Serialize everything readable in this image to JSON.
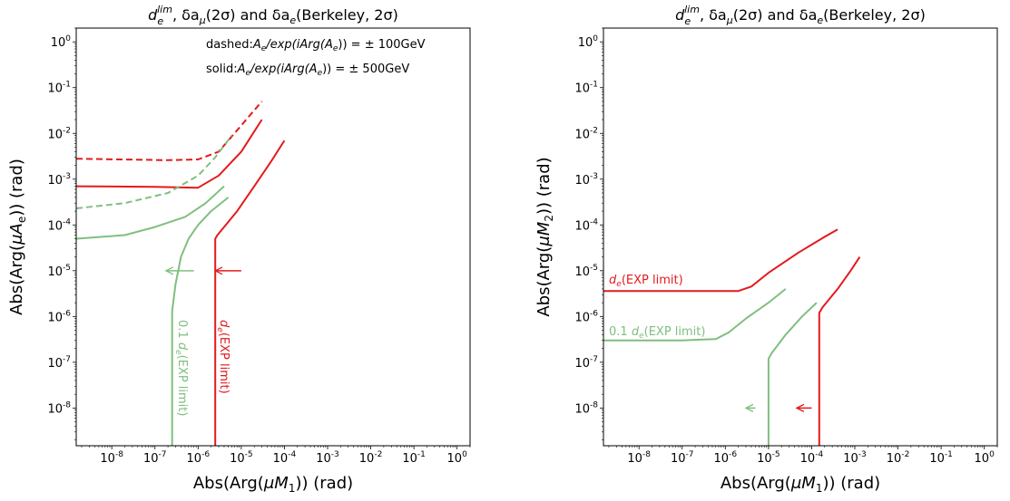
{
  "chart_data": [
    {
      "type": "line",
      "title": "d_e^lim, δa_μ(2σ) and δa_e(Berkeley, 2σ)",
      "title_parts": {
        "d": "d",
        "e": "e",
        "lim": "lim",
        "rest": ", δa",
        "mu": "μ",
        "mid": "(2σ) and δa",
        "e2": "e",
        "end": "(Berkeley, 2σ)"
      },
      "xlabel": "Abs(Arg(μM1)) (rad)",
      "xlabel_parts": {
        "a": "Abs(Arg(",
        "var": "μM",
        "sub": "1",
        "b": ")) (rad)"
      },
      "ylabel": "Abs(Arg(μAe)) (rad)",
      "ylabel_parts": {
        "a": "Abs(Arg(",
        "var": "μA",
        "sub": "e",
        "b": ")) (rad)"
      },
      "xscale": "log",
      "yscale": "log",
      "xlim": [
        1.5e-09,
        2.0
      ],
      "ylim": [
        1.5e-09,
        2.0
      ],
      "xticks": [
        "10^-8",
        "10^-7",
        "10^-6",
        "10^-5",
        "10^-4",
        "10^-3",
        "10^-2",
        "10^-1",
        "10^0"
      ],
      "yticks": [
        "10^-8",
        "10^-7",
        "10^-6",
        "10^-5",
        "10^-4",
        "10^-3",
        "10^-2",
        "10^-1",
        "10^0"
      ],
      "annotations": [
        {
          "prefix": "dashed:",
          "body": "A_e/exp(iArg(A_e)) = ± 100GeV"
        },
        {
          "prefix": "solid:",
          "body": "A_e/exp(iArg(A_e)) = ± 500GeV"
        }
      ],
      "curve_labels": [
        {
          "text": "0.1 d_e(EXP limit)",
          "color": "#7fbf7f"
        },
        {
          "text": "d_e(EXP limit)",
          "color": "#e31a1c"
        }
      ],
      "series": [
        {
          "color": "#e31a1c",
          "dash": true,
          "x": [
            1.5e-09,
            2e-07,
            1e-06,
            3e-06,
            1e-05,
            3e-05
          ],
          "y": [
            0.0028,
            0.0026,
            0.0027,
            0.004,
            0.015,
            0.05
          ]
        },
        {
          "color": "#e31a1c",
          "dash": false,
          "x": [
            1.5e-09,
            1e-07,
            1e-06,
            3e-06,
            1e-05,
            3e-05
          ],
          "y": [
            0.0007,
            0.00068,
            0.00065,
            0.0012,
            0.004,
            0.02
          ]
        },
        {
          "color": "#e31a1c",
          "dash": false,
          "x": [
            2.5e-06,
            2.5e-06,
            2.8e-06,
            8e-06,
            2e-05,
            5e-05,
            0.0001
          ],
          "y": [
            1.5e-09,
            5e-05,
            6e-05,
            0.0002,
            0.0007,
            0.0025,
            0.007
          ]
        },
        {
          "color": "#7fbf7f",
          "dash": true,
          "x": [
            1.5e-09,
            2e-08,
            2e-07,
            1e-06,
            2.5e-06,
            6e-06
          ],
          "y": [
            0.00023,
            0.0003,
            0.0005,
            0.0012,
            0.003,
            0.009
          ]
        },
        {
          "color": "#7fbf7f",
          "dash": false,
          "x": [
            1.5e-09,
            2e-08,
            1e-07,
            5e-07,
            1.5e-06,
            4e-06
          ],
          "y": [
            5e-05,
            6e-05,
            9e-05,
            0.00015,
            0.0003,
            0.0007
          ]
        },
        {
          "color": "#7fbf7f",
          "dash": false,
          "x": [
            2.5e-07,
            2.5e-07,
            3e-07,
            4e-07,
            6e-07,
            1e-06,
            2e-06,
            5e-06
          ],
          "y": [
            1.5e-09,
            1.3e-06,
            5e-06,
            2e-05,
            5e-05,
            0.0001,
            0.0002,
            0.0004
          ]
        }
      ],
      "arrows": [
        {
          "color": "#e31a1c",
          "x_from": 1e-05,
          "x_to": 2.5e-06,
          "y": 1e-05
        },
        {
          "color": "#7fbf7f",
          "x_from": 8e-07,
          "x_to": 1.8e-07,
          "y": 1e-05
        }
      ]
    },
    {
      "type": "line",
      "title": "d_e^lim, δa_μ(2σ) and δa_e(Berkeley, 2σ)",
      "title_parts": {
        "d": "d",
        "e": "e",
        "lim": "lim",
        "rest": ", δa",
        "mu": "μ",
        "mid": "(2σ) and δa",
        "e2": "e",
        "end": "(Berkeley, 2σ)"
      },
      "xlabel": "Abs(Arg(μM1)) (rad)",
      "xlabel_parts": {
        "a": "Abs(Arg(",
        "var": "μM",
        "sub": "1",
        "b": ")) (rad)"
      },
      "ylabel": "Abs(Arg(μM2)) (rad)",
      "ylabel_parts": {
        "a": "Abs(Arg(",
        "var": "μM",
        "sub": "2",
        "b": ")) (rad)"
      },
      "xscale": "log",
      "yscale": "log",
      "xlim": [
        1.5e-09,
        2.0
      ],
      "ylim": [
        1.5e-09,
        2.0
      ],
      "xticks": [
        "10^-8",
        "10^-7",
        "10^-6",
        "10^-5",
        "10^-4",
        "10^-3",
        "10^-2",
        "10^-1",
        "10^0"
      ],
      "yticks": [
        "10^-8",
        "10^-7",
        "10^-6",
        "10^-5",
        "10^-4",
        "10^-3",
        "10^-2",
        "10^-1",
        "10^0"
      ],
      "annotations": [],
      "curve_labels": [
        {
          "text": "d_e(EXP limit)",
          "color": "#e31a1c"
        },
        {
          "text": "0.1 d_e(EXP limit)",
          "color": "#7fbf7f"
        }
      ],
      "series": [
        {
          "color": "#e31a1c",
          "dash": false,
          "x": [
            1.5e-09,
            1e-07,
            2e-06,
            4e-06,
            1e-05,
            5e-05,
            0.0002,
            0.0004
          ],
          "y": [
            3.6e-06,
            3.6e-06,
            3.6e-06,
            4.5e-06,
            9e-06,
            2.5e-05,
            5.5e-05,
            8e-05
          ]
        },
        {
          "color": "#e31a1c",
          "dash": false,
          "x": [
            0.00015,
            0.00015,
            0.00018,
            0.0004,
            0.0008,
            0.0013
          ],
          "y": [
            1.5e-09,
            1.2e-06,
            1.6e-06,
            4e-06,
            1e-05,
            2e-05
          ]
        },
        {
          "color": "#7fbf7f",
          "dash": false,
          "x": [
            1.5e-09,
            1e-07,
            6e-07,
            1.2e-06,
            3e-06,
            1e-05,
            2.5e-05
          ],
          "y": [
            3e-07,
            3e-07,
            3.2e-07,
            4.5e-07,
            9e-07,
            2e-06,
            4e-06
          ]
        },
        {
          "color": "#7fbf7f",
          "dash": false,
          "x": [
            1e-05,
            1e-05,
            1.2e-05,
            2.5e-05,
            6e-05,
            0.00013
          ],
          "y": [
            1.5e-09,
            1.2e-07,
            1.6e-07,
            4e-07,
            1e-06,
            2e-06
          ]
        }
      ],
      "arrows": [
        {
          "color": "#e31a1c",
          "x_from": 0.0001,
          "x_to": 4.5e-05,
          "y": 1e-08
        },
        {
          "color": "#7fbf7f",
          "x_from": 5e-06,
          "x_to": 3e-06,
          "y": 1e-08
        }
      ]
    }
  ]
}
